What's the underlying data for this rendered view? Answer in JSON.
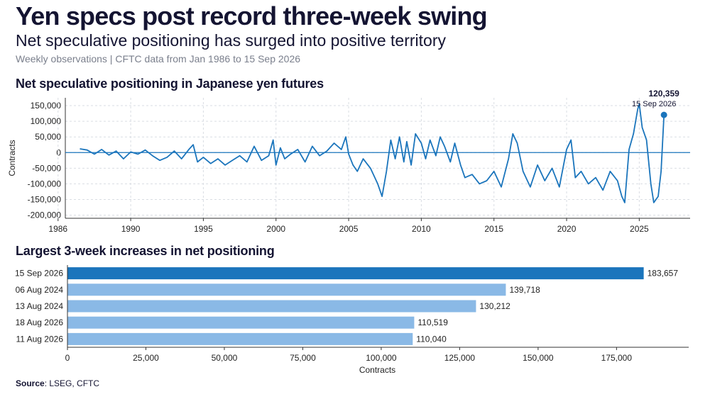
{
  "header": {
    "title": "Yen specs post record three-week swing",
    "subtitle": "Net speculative positioning has surged into positive territory",
    "note": "Weekly observations | CFTC data from Jan 1986 to 15 Sep 2026"
  },
  "colors": {
    "line": "#1b75bc",
    "bar_highlight": "#1b75bc",
    "bar": "#8ab9e6",
    "grid": "#d9dde3",
    "axis": "#333333"
  },
  "chart_data": [
    {
      "type": "line",
      "title": "Net speculative positioning in Japanese yen futures",
      "ylabel": "Contracts",
      "xlabel": "",
      "xlim": [
        1985.5,
        2028.5
      ],
      "ylim": [
        -210000,
        175000
      ],
      "x_ticks": [
        1985,
        1990,
        1995,
        2000,
        2005,
        2010,
        2015,
        2020,
        2025
      ],
      "x_tick_labels": [
        "1986",
        "1990",
        "1995",
        "2000",
        "2005",
        "2010",
        "2015",
        "2020",
        "2025"
      ],
      "y_ticks": [
        -200000,
        -150000,
        -100000,
        -50000,
        0,
        50000,
        100000,
        150000
      ],
      "y_tick_labels": [
        "-200,000",
        "-150,000",
        "-100,000",
        "-50,000",
        "0",
        "50,000",
        "100,000",
        "150,000"
      ],
      "grid": true,
      "annotation": {
        "value_label": "120,359",
        "date_label": "15 Sep 2026",
        "x": 2026.7,
        "y": 120359
      },
      "x": [
        1986.5,
        1987.0,
        1987.5,
        1988.0,
        1988.5,
        1989.0,
        1989.5,
        1990.0,
        1990.5,
        1991.0,
        1991.5,
        1992.0,
        1992.5,
        1993.0,
        1993.5,
        1994.0,
        1994.3,
        1994.6,
        1995.0,
        1995.5,
        1996.0,
        1996.5,
        1997.0,
        1997.5,
        1998.0,
        1998.5,
        1999.0,
        1999.5,
        1999.8,
        2000.0,
        2000.3,
        2000.6,
        2001.0,
        2001.5,
        2002.0,
        2002.5,
        2003.0,
        2003.5,
        2004.0,
        2004.5,
        2004.8,
        2005.0,
        2005.3,
        2005.6,
        2006.0,
        2006.5,
        2007.0,
        2007.3,
        2007.6,
        2007.9,
        2008.2,
        2008.5,
        2008.8,
        2009.0,
        2009.3,
        2009.6,
        2010.0,
        2010.3,
        2010.6,
        2011.0,
        2011.3,
        2011.6,
        2012.0,
        2012.3,
        2012.7,
        2013.0,
        2013.5,
        2014.0,
        2014.5,
        2015.0,
        2015.5,
        2016.0,
        2016.3,
        2016.6,
        2017.0,
        2017.5,
        2018.0,
        2018.5,
        2019.0,
        2019.5,
        2020.0,
        2020.3,
        2020.6,
        2021.0,
        2021.5,
        2022.0,
        2022.5,
        2023.0,
        2023.5,
        2023.8,
        2024.0,
        2024.3,
        2024.6,
        2024.9,
        2025.0,
        2025.2,
        2025.5,
        2025.8,
        2026.0,
        2026.3,
        2026.5,
        2026.7
      ],
      "y": [
        12000,
        8000,
        -5000,
        10000,
        -8000,
        5000,
        -20000,
        2000,
        -5000,
        8000,
        -10000,
        -25000,
        -15000,
        5000,
        -20000,
        10000,
        25000,
        -30000,
        -15000,
        -35000,
        -20000,
        -40000,
        -25000,
        -10000,
        -30000,
        20000,
        -25000,
        -10000,
        40000,
        -40000,
        15000,
        -20000,
        -5000,
        10000,
        -30000,
        20000,
        -10000,
        5000,
        30000,
        10000,
        50000,
        -5000,
        -40000,
        -60000,
        -20000,
        -50000,
        -100000,
        -140000,
        -60000,
        40000,
        -20000,
        50000,
        -30000,
        35000,
        -40000,
        60000,
        30000,
        -20000,
        40000,
        -10000,
        50000,
        20000,
        -30000,
        30000,
        -40000,
        -80000,
        -70000,
        -100000,
        -90000,
        -60000,
        -110000,
        -20000,
        60000,
        30000,
        -60000,
        -110000,
        -40000,
        -90000,
        -50000,
        -110000,
        10000,
        40000,
        -80000,
        -60000,
        -100000,
        -80000,
        -120000,
        -60000,
        -90000,
        -140000,
        -160000,
        10000,
        60000,
        140000,
        155000,
        80000,
        40000,
        -100000,
        -160000,
        -140000,
        -60000,
        120359
      ]
    },
    {
      "type": "bar",
      "orientation": "horizontal",
      "title": "Largest 3-week increases in net positioning",
      "xlabel": "Contracts",
      "categories": [
        "15 Sep 2026",
        "06 Aug 2024",
        "13 Aug 2024",
        "18 Aug 2026",
        "11 Aug 2026"
      ],
      "values": [
        183657,
        139718,
        130212,
        110519,
        110040
      ],
      "value_labels": [
        "183,657",
        "139,718",
        "130,212",
        "110,519",
        "110,040"
      ],
      "highlight_index": 0,
      "xlim": [
        0,
        198000
      ],
      "x_ticks": [
        0,
        25000,
        50000,
        75000,
        100000,
        125000,
        150000,
        175000
      ],
      "x_tick_labels": [
        "0",
        "25,000",
        "50,000",
        "75,000",
        "100,000",
        "125,000",
        "150,000",
        "175,000"
      ],
      "grid": false
    }
  ],
  "footer": {
    "source_label": "Source",
    "source_text": ": LSEG, CFTC"
  }
}
